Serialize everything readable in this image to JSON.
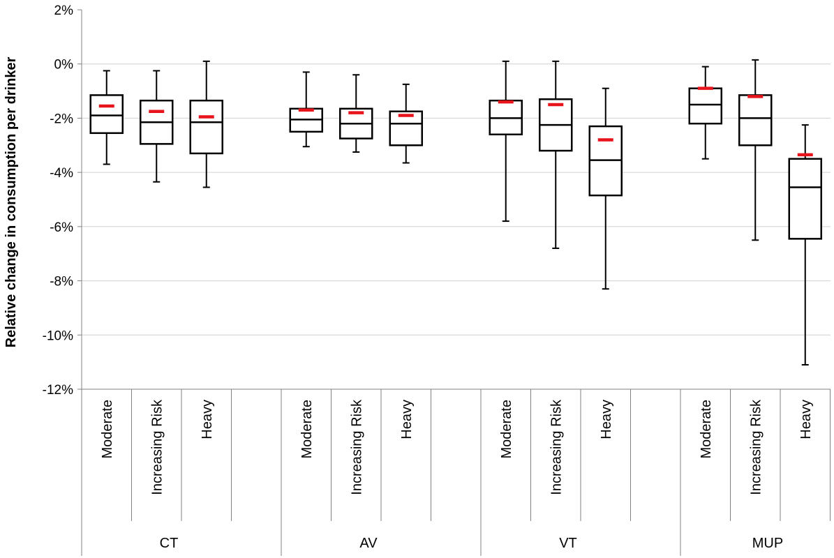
{
  "chart_data": {
    "type": "box",
    "ylabel": "Relative change in consumption per drinker",
    "ylim": [
      -12,
      2
    ],
    "y_ticks": [
      "2%",
      "0%",
      "-2%",
      "-4%",
      "-6%",
      "-8%",
      "-10%",
      "-12%"
    ],
    "y_tick_values": [
      2,
      0,
      -2,
      -4,
      -6,
      -8,
      -10,
      -12
    ],
    "grid": true,
    "mean_marker_color": "#e8141b",
    "groups": [
      {
        "name": "CT",
        "boxes": [
          {
            "category": "Moderate",
            "min": -3.7,
            "q1": -2.55,
            "median": -1.9,
            "q3": -1.15,
            "max": -0.25,
            "mean": -1.55
          },
          {
            "category": "Increasing Risk",
            "min": -4.35,
            "q1": -2.95,
            "median": -2.15,
            "q3": -1.35,
            "max": -0.25,
            "mean": -1.75
          },
          {
            "category": "Heavy",
            "min": -4.55,
            "q1": -3.3,
            "median": -2.15,
            "q3": -1.35,
            "max": 0.1,
            "mean": -1.95
          }
        ]
      },
      {
        "name": "AV",
        "boxes": [
          {
            "category": "Moderate",
            "min": -3.05,
            "q1": -2.5,
            "median": -2.05,
            "q3": -1.65,
            "max": -0.3,
            "mean": -1.7
          },
          {
            "category": "Increasing Risk",
            "min": -3.25,
            "q1": -2.75,
            "median": -2.2,
            "q3": -1.65,
            "max": -0.4,
            "mean": -1.8
          },
          {
            "category": "Heavy",
            "min": -3.65,
            "q1": -3.0,
            "median": -2.2,
            "q3": -1.75,
            "max": -0.75,
            "mean": -1.9
          }
        ]
      },
      {
        "name": "VT",
        "boxes": [
          {
            "category": "Moderate",
            "min": -5.8,
            "q1": -2.6,
            "median": -2.0,
            "q3": -1.35,
            "max": 0.1,
            "mean": -1.4
          },
          {
            "category": "Increasing Risk",
            "min": -6.8,
            "q1": -3.2,
            "median": -2.25,
            "q3": -1.3,
            "max": 0.1,
            "mean": -1.5
          },
          {
            "category": "Heavy",
            "min": -8.3,
            "q1": -4.85,
            "median": -3.55,
            "q3": -2.3,
            "max": -0.9,
            "mean": -2.8
          }
        ]
      },
      {
        "name": "MUP",
        "boxes": [
          {
            "category": "Moderate",
            "min": -3.5,
            "q1": -2.2,
            "median": -1.5,
            "q3": -0.9,
            "max": -0.1,
            "mean": -0.9
          },
          {
            "category": "Increasing Risk",
            "min": -6.5,
            "q1": -3.0,
            "median": -2.0,
            "q3": -1.15,
            "max": 0.15,
            "mean": -1.2
          },
          {
            "category": "Heavy",
            "min": -11.1,
            "q1": -6.45,
            "median": -4.55,
            "q3": -3.5,
            "max": -2.25,
            "mean": -3.35
          }
        ]
      }
    ]
  }
}
